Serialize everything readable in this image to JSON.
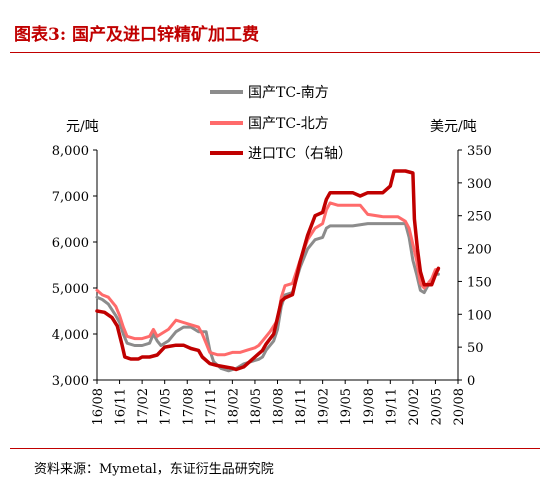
{
  "title": "图表3:  国产及进口锌精矿加工费",
  "source": "资料来源：Mymetal，东证衍生品研究院",
  "chart_data": {
    "type": "line",
    "left_unit": "元/吨",
    "right_unit": "美元/吨",
    "y_left": {
      "min": 3000,
      "max": 8000,
      "ticks": [
        "3,000",
        "4,000",
        "5,000",
        "6,000",
        "7,000",
        "8,000"
      ]
    },
    "y_right": {
      "min": 0,
      "max": 350,
      "ticks": [
        "0",
        "50",
        "100",
        "150",
        "200",
        "250",
        "300",
        "350"
      ]
    },
    "x_ticks": [
      "16/08",
      "16/11",
      "17/02",
      "17/05",
      "17/08",
      "17/11",
      "18/02",
      "18/05",
      "18/08",
      "18/11",
      "19/02",
      "19/05",
      "19/08",
      "19/11",
      "20/02",
      "20/05",
      "20/08"
    ],
    "x_range": [
      0,
      48
    ],
    "series": [
      {
        "name": "国产TC-南方",
        "axis": "left",
        "color": "#8c8c8c",
        "points": [
          [
            0,
            4800
          ],
          [
            0.7,
            4750
          ],
          [
            1.5,
            4650
          ],
          [
            2.5,
            4400
          ],
          [
            3,
            4250
          ],
          [
            3.5,
            4000
          ],
          [
            4,
            3800
          ],
          [
            5,
            3750
          ],
          [
            6,
            3750
          ],
          [
            7,
            3800
          ],
          [
            7.5,
            4000
          ],
          [
            8,
            3850
          ],
          [
            8.5,
            3750
          ],
          [
            9.5,
            3850
          ],
          [
            10.5,
            4050
          ],
          [
            11.5,
            4150
          ],
          [
            12.5,
            4150
          ],
          [
            13.5,
            4050
          ],
          [
            14.5,
            4050
          ],
          [
            15,
            3650
          ],
          [
            15.5,
            3400
          ],
          [
            16.5,
            3250
          ],
          [
            17.5,
            3200
          ],
          [
            18.5,
            3250
          ],
          [
            19.5,
            3350
          ],
          [
            20.5,
            3400
          ],
          [
            21.5,
            3450
          ],
          [
            22,
            3500
          ],
          [
            22.5,
            3650
          ],
          [
            23.5,
            3850
          ],
          [
            24,
            4100
          ],
          [
            24.5,
            4600
          ],
          [
            25,
            4850
          ],
          [
            26,
            4900
          ],
          [
            27,
            5450
          ],
          [
            28,
            5850
          ],
          [
            29,
            6050
          ],
          [
            30,
            6100
          ],
          [
            30.5,
            6300
          ],
          [
            31,
            6350
          ],
          [
            32,
            6350
          ],
          [
            34,
            6350
          ],
          [
            36,
            6400
          ],
          [
            38,
            6400
          ],
          [
            40,
            6400
          ],
          [
            41,
            6400
          ],
          [
            41.5,
            6100
          ],
          [
            42,
            5600
          ],
          [
            42.5,
            5300
          ],
          [
            43,
            4950
          ],
          [
            43.5,
            4900
          ],
          [
            44,
            5050
          ],
          [
            44.5,
            5100
          ],
          [
            45,
            5300
          ],
          [
            45.4,
            5300
          ]
        ]
      },
      {
        "name": "国产TC-北方",
        "axis": "left",
        "color": "#ff6b6b",
        "points": [
          [
            0,
            4950
          ],
          [
            0.7,
            4850
          ],
          [
            1.5,
            4800
          ],
          [
            2.5,
            4600
          ],
          [
            3,
            4400
          ],
          [
            3.5,
            4150
          ],
          [
            4,
            3950
          ],
          [
            5,
            3900
          ],
          [
            6,
            3900
          ],
          [
            7,
            3950
          ],
          [
            7.5,
            4100
          ],
          [
            8,
            3950
          ],
          [
            8.5,
            4000
          ],
          [
            9.5,
            4100
          ],
          [
            10.5,
            4300
          ],
          [
            11.5,
            4250
          ],
          [
            12.5,
            4200
          ],
          [
            13.5,
            4150
          ],
          [
            14,
            4000
          ],
          [
            14.5,
            3800
          ],
          [
            15,
            3600
          ],
          [
            16,
            3550
          ],
          [
            17,
            3550
          ],
          [
            18,
            3600
          ],
          [
            19,
            3600
          ],
          [
            20,
            3650
          ],
          [
            21,
            3700
          ],
          [
            21.5,
            3750
          ],
          [
            22,
            3850
          ],
          [
            23,
            4050
          ],
          [
            24,
            4300
          ],
          [
            24.5,
            4800
          ],
          [
            25,
            5050
          ],
          [
            26,
            5100
          ],
          [
            27,
            5600
          ],
          [
            28,
            6050
          ],
          [
            29,
            6300
          ],
          [
            30,
            6400
          ],
          [
            30.5,
            6700
          ],
          [
            31,
            6850
          ],
          [
            32,
            6800
          ],
          [
            34,
            6800
          ],
          [
            35,
            6800
          ],
          [
            36,
            6600
          ],
          [
            38,
            6550
          ],
          [
            40,
            6550
          ],
          [
            41,
            6450
          ],
          [
            41.5,
            6300
          ],
          [
            42,
            5950
          ],
          [
            42.5,
            5600
          ],
          [
            43,
            5100
          ],
          [
            43.5,
            5000
          ],
          [
            44,
            5100
          ],
          [
            44.5,
            5200
          ],
          [
            45,
            5400
          ],
          [
            45.4,
            5400
          ]
        ]
      },
      {
        "name": "进口TC（右轴）",
        "axis": "right",
        "color": "#c00000",
        "points": [
          [
            0,
            105
          ],
          [
            1,
            103
          ],
          [
            2,
            95
          ],
          [
            2.7,
            82
          ],
          [
            3.3,
            55
          ],
          [
            3.7,
            35
          ],
          [
            4.5,
            32
          ],
          [
            5.5,
            32
          ],
          [
            6,
            35
          ],
          [
            7,
            35
          ],
          [
            8,
            38
          ],
          [
            9,
            50
          ],
          [
            10.5,
            53
          ],
          [
            11.5,
            53
          ],
          [
            12.5,
            48
          ],
          [
            13.5,
            45
          ],
          [
            14,
            35
          ],
          [
            15,
            25
          ],
          [
            16,
            22
          ],
          [
            17,
            20
          ],
          [
            18,
            18
          ],
          [
            18.5,
            16
          ],
          [
            19.5,
            20
          ],
          [
            20.5,
            30
          ],
          [
            21.5,
            40
          ],
          [
            22,
            45
          ],
          [
            22.5,
            55
          ],
          [
            23.5,
            70
          ],
          [
            24,
            95
          ],
          [
            24.5,
            120
          ],
          [
            25,
            125
          ],
          [
            26,
            130
          ],
          [
            27,
            180
          ],
          [
            28,
            220
          ],
          [
            29,
            250
          ],
          [
            30,
            255
          ],
          [
            30.5,
            275
          ],
          [
            31,
            285
          ],
          [
            32,
            285
          ],
          [
            34,
            285
          ],
          [
            35,
            280
          ],
          [
            36,
            285
          ],
          [
            37,
            285
          ],
          [
            38,
            285
          ],
          [
            39,
            295
          ],
          [
            39.5,
            318
          ],
          [
            40,
            318
          ],
          [
            41,
            318
          ],
          [
            42,
            315
          ],
          [
            42.2,
            245
          ],
          [
            42.6,
            200
          ],
          [
            43,
            165
          ],
          [
            43.5,
            145
          ],
          [
            44,
            145
          ],
          [
            44.5,
            145
          ],
          [
            45,
            160
          ],
          [
            45.4,
            170
          ]
        ]
      }
    ]
  }
}
